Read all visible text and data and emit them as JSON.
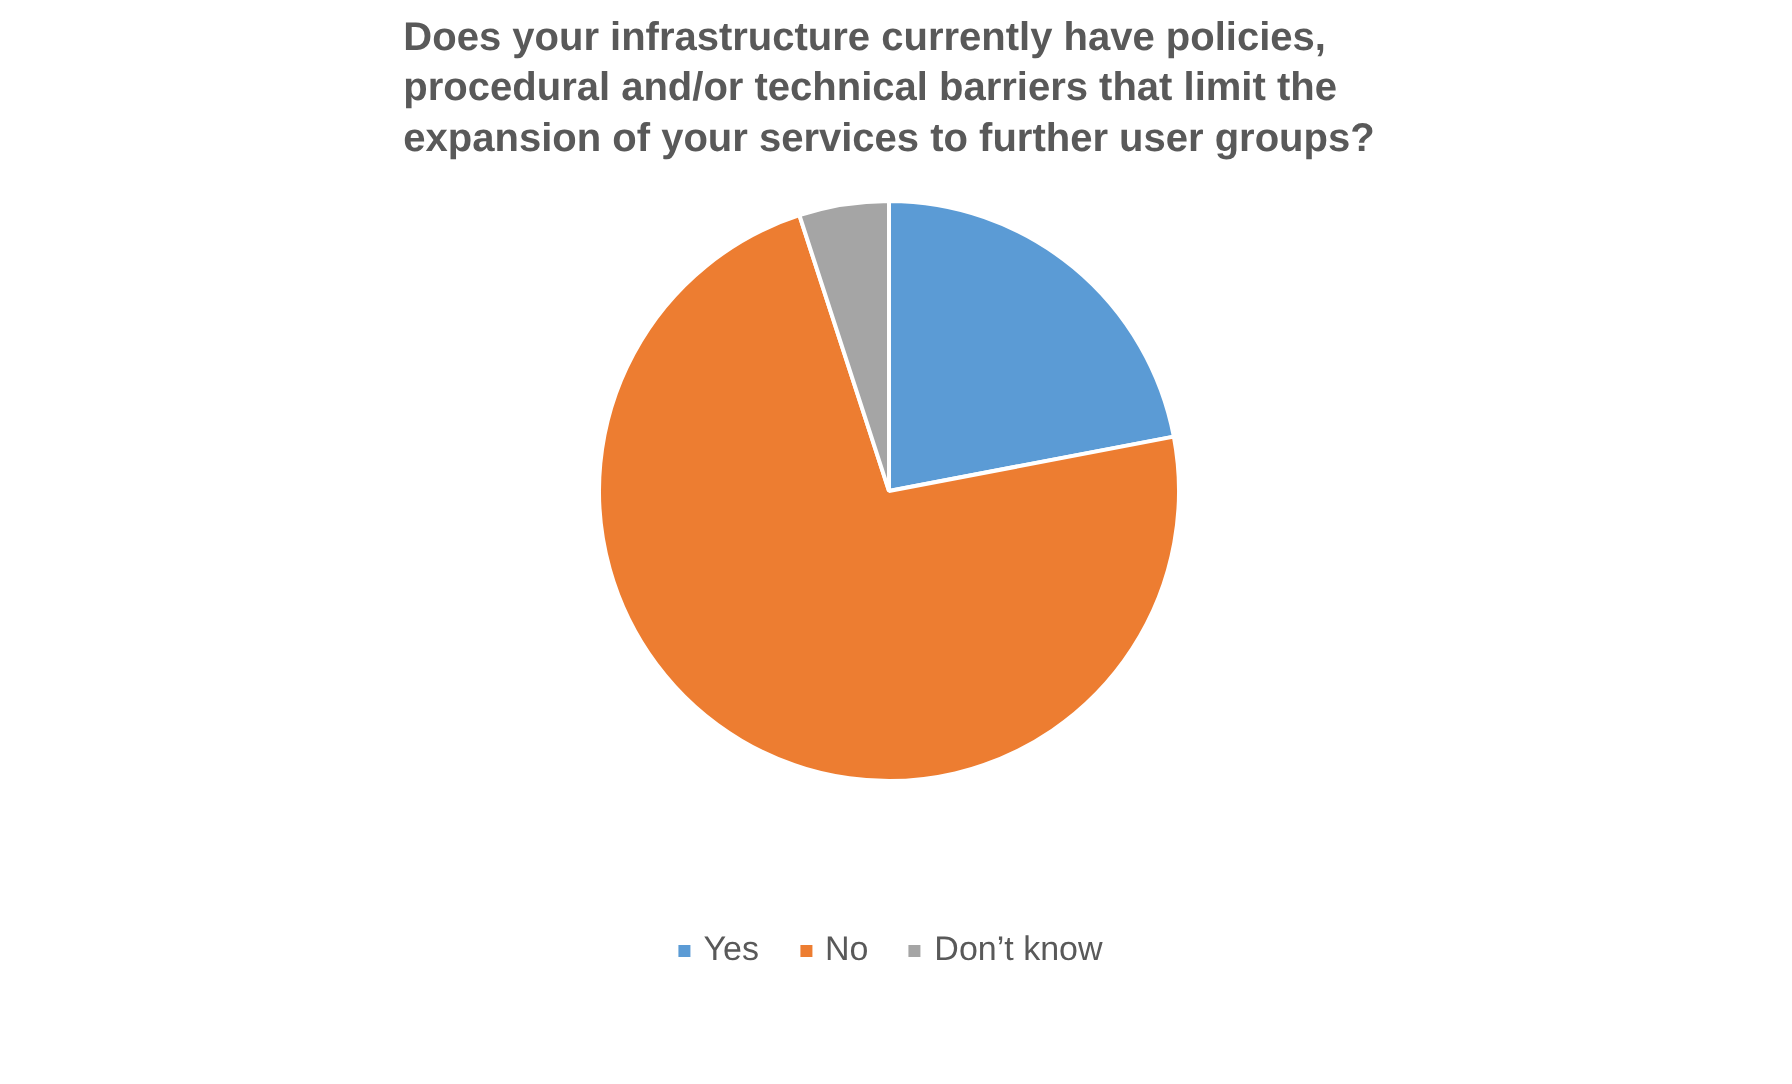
{
  "chart_data": {
    "type": "pie",
    "title": "Does your infrastructure currently have policies, procedural and/or technical barriers that limit the expansion of your services to further user groups?",
    "categories": [
      "Yes",
      "No",
      "Don’t know"
    ],
    "values": [
      22,
      73,
      5
    ],
    "colors": [
      "#5b9bd5",
      "#ed7d31",
      "#a5a5a5"
    ],
    "legend": "bottom"
  }
}
